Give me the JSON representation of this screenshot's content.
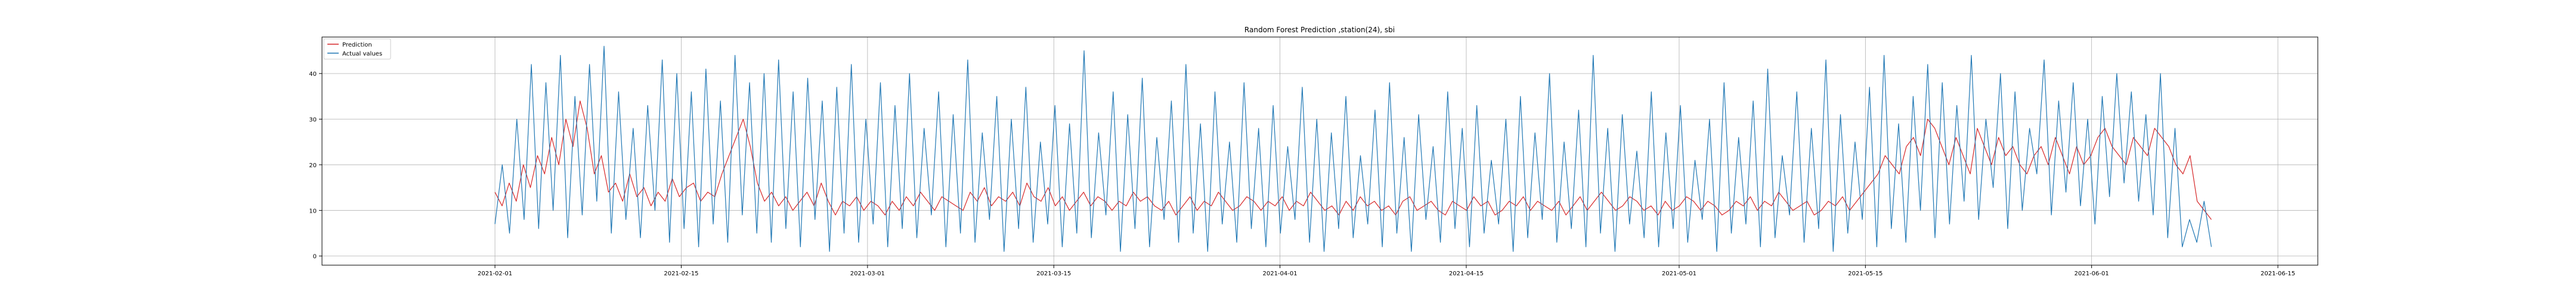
{
  "chart_data": {
    "type": "line",
    "title": "Random Forest Prediction ,station(24), sbi",
    "xlabel": "",
    "ylabel": "",
    "x_range": [
      "2021-01-19",
      "2021-06-18"
    ],
    "ylim": [
      -2,
      48
    ],
    "x_ticks": [
      "2021-02-01",
      "2021-02-15",
      "2021-03-01",
      "2021-03-15",
      "2021-04-01",
      "2021-04-15",
      "2021-05-01",
      "2021-05-15",
      "2021-06-01",
      "2021-06-15"
    ],
    "y_ticks": [
      0,
      10,
      20,
      30,
      40
    ],
    "grid": true,
    "legend_position": "top-left",
    "x_start": "2021-02-01",
    "x_end": "2021-06-10",
    "series": [
      {
        "name": "Prediction",
        "color": "#d62728",
        "values": [
          14,
          11,
          16,
          12,
          20,
          15,
          22,
          18,
          26,
          20,
          30,
          24,
          34,
          28,
          18,
          22,
          14,
          16,
          12,
          18,
          13,
          15,
          11,
          14,
          12,
          17,
          13,
          15,
          16,
          12,
          14,
          13,
          18,
          22,
          26,
          30,
          24,
          16,
          12,
          14,
          11,
          13,
          10,
          12,
          14,
          11,
          16,
          12,
          9,
          12,
          11,
          13,
          10,
          12,
          11,
          9,
          12,
          10,
          13,
          11,
          14,
          12,
          10,
          13,
          12,
          11,
          10,
          14,
          12,
          15,
          11,
          13,
          12,
          14,
          11,
          16,
          13,
          12,
          15,
          11,
          13,
          10,
          12,
          14,
          11,
          13,
          12,
          10,
          12,
          11,
          14,
          12,
          13,
          11,
          10,
          12,
          9,
          11,
          13,
          10,
          12,
          11,
          14,
          12,
          10,
          11,
          13,
          12,
          10,
          12,
          11,
          13,
          10,
          12,
          11,
          14,
          12,
          10,
          11,
          9,
          12,
          10,
          13,
          11,
          12,
          10,
          11,
          9,
          12,
          13,
          10,
          11,
          12,
          10,
          9,
          12,
          11,
          10,
          13,
          11,
          12,
          9,
          10,
          12,
          11,
          13,
          10,
          12,
          11,
          10,
          12,
          9,
          11,
          13,
          10,
          12,
          14,
          12,
          10,
          11,
          13,
          12,
          10,
          11,
          9,
          12,
          10,
          11,
          13,
          12,
          10,
          12,
          11,
          9,
          10,
          12,
          11,
          13,
          10,
          12,
          11,
          14,
          12,
          10,
          11,
          12,
          9,
          10,
          12,
          11,
          13,
          10,
          12,
          14,
          16,
          18,
          22,
          20,
          18,
          24,
          26,
          22,
          30,
          28,
          24,
          20,
          26,
          22,
          18,
          28,
          24,
          20,
          26,
          22,
          24,
          20,
          18,
          22,
          24,
          20,
          26,
          22,
          18,
          24,
          20,
          22,
          26,
          28,
          24,
          22,
          20,
          26,
          24,
          22,
          28,
          26,
          24,
          20,
          18,
          22,
          12,
          10,
          8
        ],
        "comment": ""
      },
      {
        "name": "Actual values",
        "color": "#1f77b4",
        "values": [
          7,
          20,
          5,
          30,
          8,
          42,
          6,
          38,
          10,
          44,
          4,
          35,
          9,
          42,
          12,
          46,
          5,
          36,
          8,
          28,
          4,
          33,
          10,
          43,
          3,
          40,
          6,
          36,
          2,
          41,
          7,
          34,
          3,
          44,
          9,
          38,
          5,
          40,
          3,
          43,
          6,
          36,
          2,
          39,
          8,
          34,
          1,
          37,
          5,
          42,
          3,
          30,
          7,
          38,
          2,
          33,
          6,
          40,
          4,
          28,
          9,
          36,
          2,
          31,
          5,
          43,
          3,
          27,
          8,
          35,
          1,
          30,
          6,
          37,
          3,
          25,
          7,
          33,
          2,
          29,
          5,
          45,
          4,
          27,
          9,
          36,
          1,
          31,
          6,
          39,
          2,
          26,
          8,
          34,
          3,
          42,
          5,
          29,
          1,
          36,
          7,
          25,
          3,
          38,
          6,
          28,
          2,
          33,
          5,
          24,
          8,
          37,
          3,
          30,
          1,
          27,
          6,
          35,
          4,
          22,
          7,
          32,
          2,
          38,
          5,
          26,
          1,
          31,
          8,
          24,
          3,
          36,
          6,
          28,
          2,
          33,
          5,
          21,
          7,
          30,
          1,
          35,
          4,
          27,
          8,
          40,
          3,
          25,
          6,
          32,
          2,
          44,
          5,
          28,
          1,
          31,
          7,
          23,
          4,
          36,
          2,
          27,
          6,
          33,
          3,
          21,
          8,
          30,
          1,
          38,
          5,
          26,
          7,
          34,
          2,
          41,
          4,
          22,
          9,
          36,
          3,
          28,
          6,
          43,
          1,
          31,
          5,
          25,
          8,
          37,
          2,
          44,
          6,
          29,
          3,
          35,
          10,
          42,
          4,
          38,
          7,
          33,
          12,
          44,
          8,
          30,
          15,
          40,
          6,
          36,
          10,
          28,
          18,
          43,
          9,
          34,
          14,
          38,
          11,
          30,
          7,
          35,
          13,
          40,
          16,
          36,
          12,
          31,
          9,
          40,
          4,
          28,
          2,
          8,
          3,
          12,
          2
        ]
      }
    ]
  }
}
